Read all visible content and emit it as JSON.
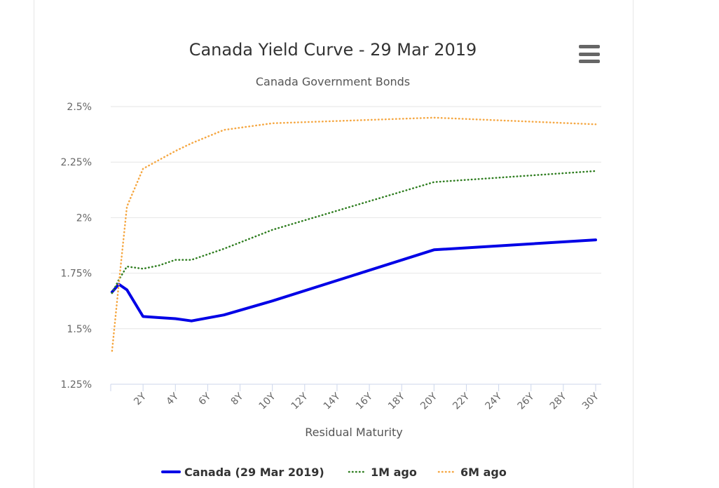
{
  "chart_data": {
    "type": "line",
    "title": "Canada Yield Curve - 29 Mar 2019",
    "subtitle": "Canada Government Bonds",
    "xlabel": "Residual Maturity",
    "ylabel": "",
    "xlim": [
      0,
      30
    ],
    "ylim": [
      1.25,
      2.5
    ],
    "x_ticks": [
      "2Y",
      "4Y",
      "6Y",
      "8Y",
      "10Y",
      "12Y",
      "14Y",
      "16Y",
      "18Y",
      "20Y",
      "22Y",
      "24Y",
      "26Y",
      "28Y",
      "30Y"
    ],
    "y_ticks": [
      "1.25%",
      "1.5%",
      "1.75%",
      "2%",
      "2.25%",
      "2.5%"
    ],
    "grid": true,
    "legend_position": "bottom",
    "series": [
      {
        "name": "Canada (29 Mar 2019)",
        "color": "#0000e6",
        "style": "solid",
        "x": [
          0.083,
          0.5,
          1,
          2,
          3,
          4,
          5,
          7,
          10,
          20,
          30
        ],
        "y": [
          1.665,
          1.7,
          1.675,
          1.555,
          1.55,
          1.545,
          1.535,
          1.562,
          1.625,
          1.855,
          1.9
        ]
      },
      {
        "name": "1M ago",
        "color": "#2e7d1f",
        "style": "dotted",
        "x": [
          0.083,
          0.5,
          1,
          2,
          3,
          4,
          5,
          7,
          10,
          20,
          30
        ],
        "y": [
          1.66,
          1.72,
          1.78,
          1.77,
          1.785,
          1.81,
          1.81,
          1.86,
          1.945,
          2.16,
          2.21
        ]
      },
      {
        "name": "6M ago",
        "color": "#f5a742",
        "style": "dotted",
        "x": [
          0.083,
          0.5,
          1,
          2,
          3,
          4,
          5,
          7,
          10,
          20,
          30
        ],
        "y": [
          1.4,
          1.7,
          2.05,
          2.22,
          2.26,
          2.3,
          2.335,
          2.395,
          2.425,
          2.45,
          2.42
        ]
      }
    ]
  }
}
